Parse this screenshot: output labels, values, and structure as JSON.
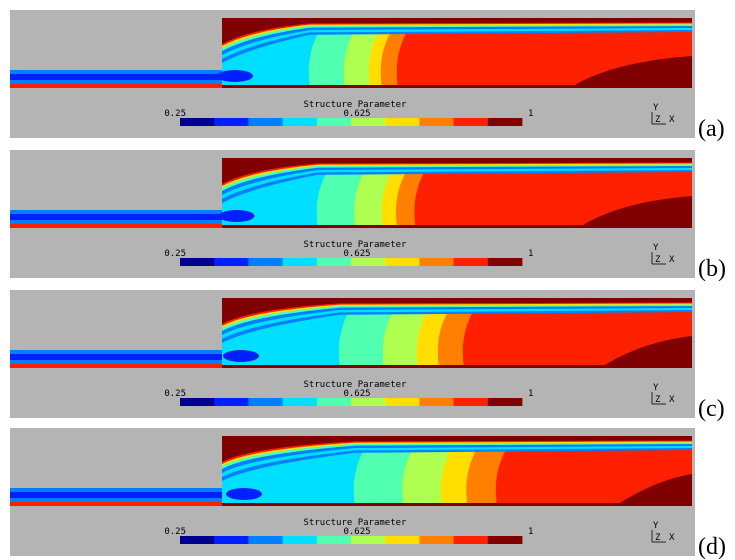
{
  "panels": [
    {
      "label": "(a)"
    },
    {
      "label": "(b)"
    },
    {
      "label": "(c)"
    },
    {
      "label": "(d)"
    }
  ],
  "colorbar": {
    "title": "Structure Parameter",
    "ticks": [
      0.25,
      0.625,
      1
    ],
    "range": [
      0.25,
      1
    ]
  },
  "axes": {
    "y": "Y",
    "z": "Z",
    "x": "X"
  }
}
